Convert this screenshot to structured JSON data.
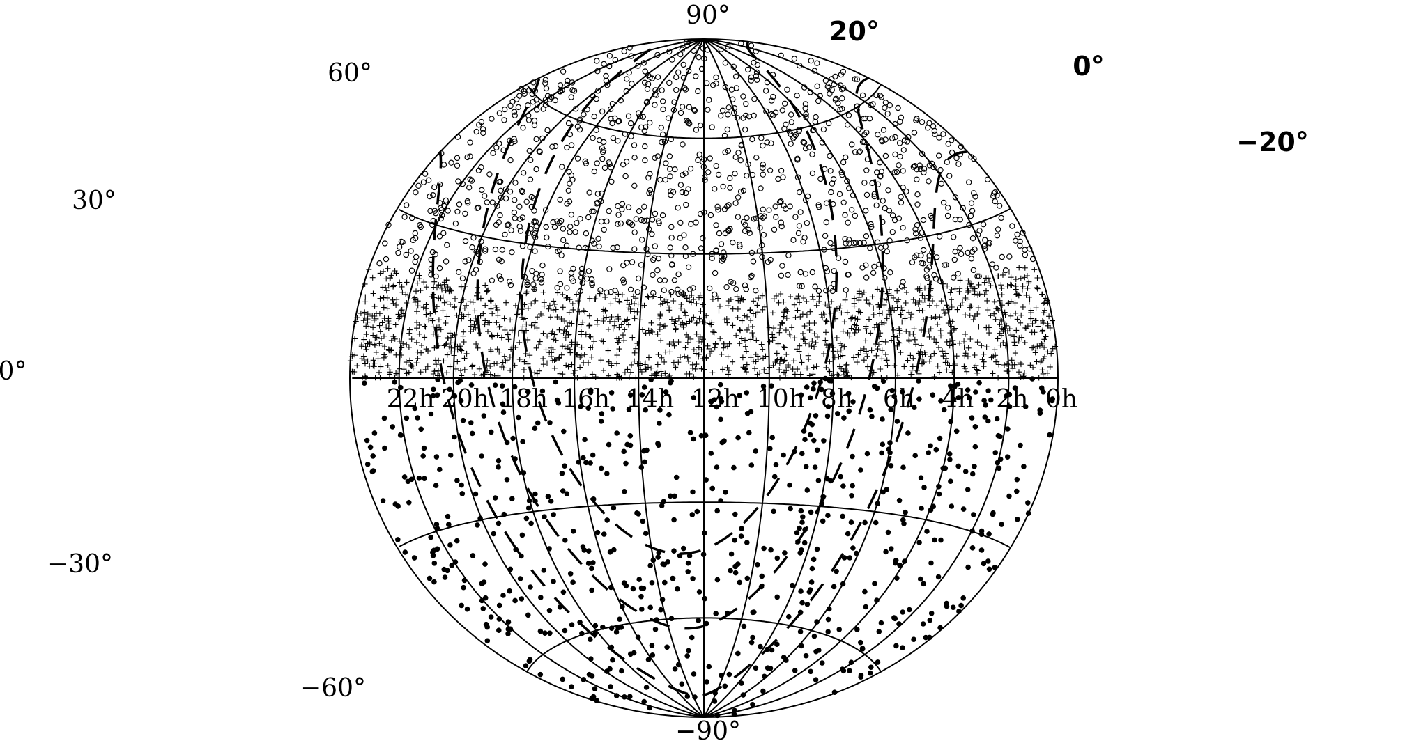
{
  "chart_data": {
    "type": "scatter",
    "projection": "Hammer-Aitoff (equal-area all-sky), RA increasing to the left, center 12h",
    "grid": true,
    "ra_labels": [
      "22h",
      "20h",
      "18h",
      "16h",
      "14h",
      "12h",
      "10h",
      "8h",
      "6h",
      "4h",
      "2h",
      "0h"
    ],
    "ra_label_values": [
      22,
      20,
      18,
      16,
      14,
      12,
      10,
      8,
      6,
      4,
      2,
      0
    ],
    "dec_labels": [
      {
        "text": "90°",
        "dec": 90
      },
      {
        "text": "60°",
        "dec": 60
      },
      {
        "text": "30°",
        "dec": 30
      },
      {
        "text": "0°",
        "dec": 0
      },
      {
        "text": "−30°",
        "dec": -30
      },
      {
        "text": "−60°",
        "dec": -60
      },
      {
        "text": "−90°",
        "dec": -90
      }
    ],
    "galactic_latitude_labels": [
      {
        "text": "20°",
        "b": 20
      },
      {
        "text": "0°",
        "b": 0
      },
      {
        "text": "−20°",
        "b": -20
      }
    ],
    "series": [
      {
        "marker": "open-circle",
        "dec_range": [
          20,
          90
        ],
        "approx_count": 1100
      },
      {
        "marker": "plus",
        "dec_range": [
          0,
          20
        ],
        "approx_count": 1500
      },
      {
        "marker": "filled-dot",
        "dec_range": [
          -90,
          0
        ],
        "approx_count": 700
      }
    ]
  }
}
